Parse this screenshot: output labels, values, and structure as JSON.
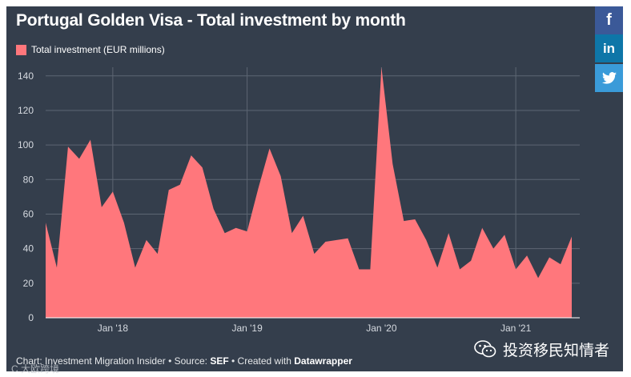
{
  "title": "Portugal Golden Visa - Total investment by month",
  "share": {
    "facebook": "f",
    "linkedin": "in"
  },
  "footer": {
    "prefix": "Chart: Investment Migration Insider • Source: ",
    "source": "SEF",
    "middle": " • Created with ",
    "tool": "Datawrapper"
  },
  "wechat": {
    "label": "投资移民知情者"
  },
  "watermark": {
    "label": "C  大欧跨境"
  },
  "colors": {
    "background": "#343e4c",
    "area": "#ff777c",
    "grid": "#5d6673",
    "facebook": "#3b5998",
    "linkedin": "#0e76a8",
    "twitter": "#3a9bd9"
  },
  "chart_data": {
    "type": "area",
    "series": [
      {
        "name": "Total investment (EUR millions)",
        "start": "2017-07",
        "values": [
          55,
          29,
          99,
          92,
          103,
          64,
          73,
          55,
          29,
          45,
          37,
          74,
          77,
          94,
          87,
          63,
          49,
          52,
          50,
          75,
          98,
          82,
          49,
          59,
          37,
          44,
          45,
          46,
          28,
          28,
          145,
          89,
          56,
          57,
          45,
          29,
          49,
          28,
          33,
          52,
          40,
          48,
          28,
          36,
          23,
          35,
          31,
          47
        ]
      }
    ],
    "x_ticks": [
      "Jan '18",
      "Jan '19",
      "Jan '20",
      "Jan '21"
    ],
    "ylim": [
      0,
      145
    ],
    "y_ticks": [
      0,
      20,
      40,
      60,
      80,
      100,
      120,
      140
    ],
    "grid": true,
    "legend": "top-left"
  }
}
